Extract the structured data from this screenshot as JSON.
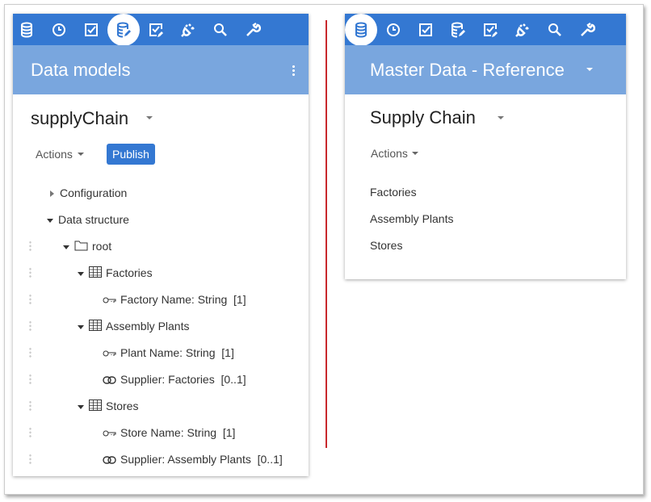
{
  "toolbar_icons": [
    "database-icon",
    "clock-icon",
    "checkbox-icon",
    "database-edit-icon",
    "checklist-edit-icon",
    "plug-icon",
    "search-icon",
    "wrench-icon"
  ],
  "colors": {
    "toolbar": "#3478d2",
    "header": "#79a6de",
    "publish": "#3478d2",
    "divider": "#c8282d"
  },
  "left": {
    "header_title": "Data models",
    "model_name": "supplyChain",
    "actions_label": "Actions",
    "publish_label": "Publish",
    "tree": [
      {
        "label": "Configuration",
        "expanded": false,
        "icon": "none"
      },
      {
        "label": "Data structure",
        "expanded": true,
        "icon": "none"
      },
      {
        "label": "root",
        "expanded": true,
        "icon": "folder-icon"
      },
      {
        "label": "Factories",
        "expanded": true,
        "icon": "table-icon"
      },
      {
        "label": "Factory Name: String  [1]",
        "icon": "key-icon"
      },
      {
        "label": "Assembly Plants",
        "expanded": true,
        "icon": "table-icon"
      },
      {
        "label": "Plant Name: String  [1]",
        "icon": "key-icon"
      },
      {
        "label": "Supplier: Factories  [0..1]",
        "icon": "link-icon"
      },
      {
        "label": "Stores",
        "expanded": true,
        "icon": "table-icon"
      },
      {
        "label": "Store Name: String  [1]",
        "icon": "key-icon"
      },
      {
        "label": "Supplier: Assembly Plants  [0..1]",
        "icon": "link-icon"
      }
    ]
  },
  "right": {
    "header_title": "Master Data - Reference",
    "model_name": "Supply Chain",
    "actions_label": "Actions",
    "items": [
      "Factories",
      "Assembly Plants",
      "Stores"
    ]
  }
}
